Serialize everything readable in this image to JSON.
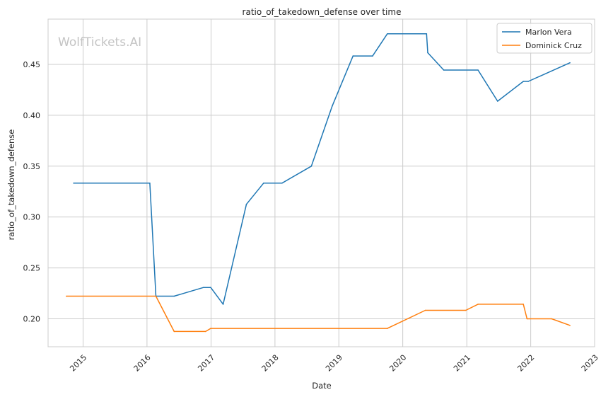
{
  "chart_data": {
    "type": "line",
    "title": "ratio_of_takedown_defense over time",
    "xlabel": "Date",
    "ylabel": "ratio_of_takedown_defense",
    "watermark": "WolfTickets.AI",
    "xlim": [
      "2014-06-15",
      "2023-01-01"
    ],
    "ylim": [
      0.1725,
      0.4945
    ],
    "x_ticks": [
      "2015",
      "2016",
      "2017",
      "2018",
      "2019",
      "2020",
      "2021",
      "2022",
      "2023"
    ],
    "y_ticks": [
      "0.20",
      "0.25",
      "0.30",
      "0.35",
      "0.40",
      "0.45"
    ],
    "grid": true,
    "legend_position": "top-right",
    "series": [
      {
        "name": "Marlon Vera",
        "color": "#1f77b4",
        "points": [
          [
            "2014-11-08",
            0.3333
          ],
          [
            "2016-01-17",
            0.3333
          ],
          [
            "2016-02-21",
            0.2222
          ],
          [
            "2016-06-04",
            0.2222
          ],
          [
            "2016-11-19",
            0.2308
          ],
          [
            "2016-12-30",
            0.2308
          ],
          [
            "2017-03-11",
            0.2143
          ],
          [
            "2017-07-22",
            0.3125
          ],
          [
            "2017-10-28",
            0.3333
          ],
          [
            "2018-02-10",
            0.3333
          ],
          [
            "2018-07-28",
            0.35
          ],
          [
            "2018-11-24",
            0.4091
          ],
          [
            "2019-03-23",
            0.4583
          ],
          [
            "2019-07-13",
            0.4583
          ],
          [
            "2019-10-05",
            0.48
          ],
          [
            "2020-05-16",
            0.48
          ],
          [
            "2020-05-23",
            0.4615
          ],
          [
            "2020-08-22",
            0.4444
          ],
          [
            "2021-03-06",
            0.4444
          ],
          [
            "2021-06-26",
            0.4138
          ],
          [
            "2021-11-20",
            0.4333
          ],
          [
            "2021-12-18",
            0.4333
          ],
          [
            "2022-08-13",
            0.4516
          ]
        ]
      },
      {
        "name": "Dominick Cruz",
        "color": "#ff7f0e",
        "points": [
          [
            "2014-09-27",
            0.2222
          ],
          [
            "2016-02-21",
            0.2222
          ],
          [
            "2016-06-04",
            0.1875
          ],
          [
            "2016-12-01",
            0.1875
          ],
          [
            "2016-12-30",
            0.1905
          ],
          [
            "2019-10-05",
            0.1905
          ],
          [
            "2020-05-09",
            0.2083
          ],
          [
            "2020-12-26",
            0.2083
          ],
          [
            "2021-03-06",
            0.2143
          ],
          [
            "2021-11-20",
            0.2143
          ],
          [
            "2021-12-11",
            0.2
          ],
          [
            "2022-05-01",
            0.2
          ],
          [
            "2022-08-13",
            0.1935
          ]
        ]
      }
    ]
  }
}
